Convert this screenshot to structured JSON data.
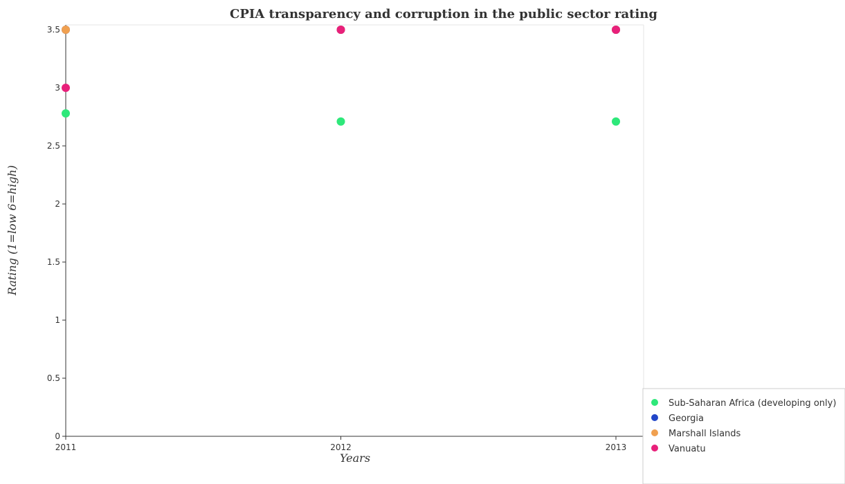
{
  "chart_data": {
    "type": "scatter",
    "title": "CPIA transparency and corruption in the public sector rating",
    "xlabel": "Years",
    "ylabel": "Rating (1=low 6=high)",
    "x": [
      "2011",
      "2012",
      "2013"
    ],
    "ylim": [
      0,
      3.5
    ],
    "yticks": [
      "0",
      "0.5",
      "1",
      "1.5",
      "2",
      "2.5",
      "3",
      "3.5"
    ],
    "grid": false,
    "legend_position": "bottom-right",
    "series": [
      {
        "name": "Sub-Saharan Africa (developing only)",
        "color": "#2ee87a",
        "values": [
          2.78,
          2.71,
          2.71
        ]
      },
      {
        "name": "Georgia",
        "color": "#2246c8",
        "values": [
          3.5,
          3.5,
          3.5
        ]
      },
      {
        "name": "Marshall Islands",
        "color": "#f0a050",
        "values": [
          3.5,
          3.5,
          3.5
        ]
      },
      {
        "name": "Vanuatu",
        "color": "#e8207a",
        "values": [
          3.0,
          3.5,
          3.5
        ]
      }
    ]
  }
}
